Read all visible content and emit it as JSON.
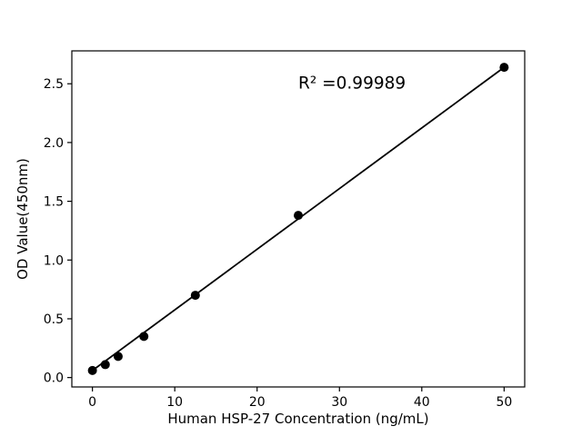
{
  "chart_data": {
    "type": "scatter",
    "title": "",
    "xlabel": "Human HSP-27 Concentration (ng/mL)",
    "ylabel": "OD Value(450nm)",
    "x": [
      0,
      1.5625,
      3.125,
      6.25,
      12.5,
      25,
      50
    ],
    "y": [
      0.06,
      0.11,
      0.18,
      0.35,
      0.7,
      1.38,
      2.64
    ],
    "trendline": {
      "x": [
        0,
        50
      ],
      "y": [
        0.06,
        2.64
      ]
    },
    "annotation": {
      "text": "R² =0.99989",
      "x": 25,
      "y": 2.46
    },
    "xlim": [
      -2.5,
      52.5
    ],
    "ylim": [
      -0.08,
      2.78
    ],
    "xticks": [
      0,
      10,
      20,
      30,
      40,
      50
    ],
    "yticks": [
      0.0,
      0.5,
      1.0,
      1.5,
      2.0,
      2.5
    ],
    "grid": false,
    "legend": null,
    "marker_color": "#000000",
    "line_color": "#000000",
    "frame_color": "#000000",
    "background": "#ffffff"
  }
}
